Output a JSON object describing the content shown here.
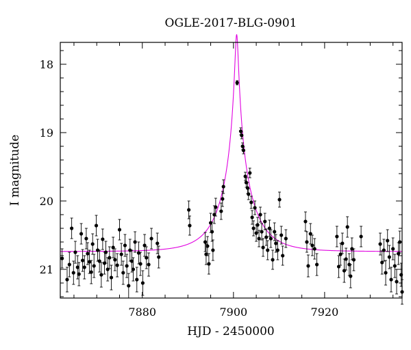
{
  "chart_data": {
    "type": "scatter",
    "title": "OGLE-2017-BLG-0901",
    "xlabel": "HJD - 2450000",
    "ylabel": "I magnitude",
    "xlim": [
      7862,
      7937
    ],
    "ylim": [
      21.42,
      17.68
    ],
    "y_inverted": true,
    "grid": false,
    "x_ticks": [
      7880,
      7900,
      7920
    ],
    "y_ticks": [
      18,
      19,
      20,
      21
    ],
    "x_tick_labels": [
      "7880",
      "7900",
      "7920"
    ],
    "y_tick_labels": [
      "18",
      "19",
      "20",
      "21"
    ],
    "model": {
      "name": "",
      "color": "#e000e0",
      "t0": 7900.7,
      "u0": 0.0536,
      "tE": 6.5,
      "baseline_mag": 20.74
    },
    "series": [
      {
        "marker_color": "#000000",
        "points": [
          [
            7862.4,
            20.84,
            0.14
          ],
          [
            7863.5,
            21.15,
            0.18
          ],
          [
            7864.0,
            20.93,
            0.18
          ],
          [
            7864.5,
            20.4,
            0.15
          ],
          [
            7864.9,
            21.05,
            0.17
          ],
          [
            7865.3,
            20.75,
            0.16
          ],
          [
            7865.8,
            20.97,
            0.17
          ],
          [
            7866.1,
            21.07,
            0.17
          ],
          [
            7866.6,
            20.48,
            0.15
          ],
          [
            7866.9,
            20.87,
            0.16
          ],
          [
            7867.3,
            20.97,
            0.17
          ],
          [
            7867.7,
            20.55,
            0.15
          ],
          [
            7868.0,
            20.77,
            0.16
          ],
          [
            7868.4,
            20.89,
            0.17
          ],
          [
            7868.8,
            21.04,
            0.17
          ],
          [
            7869.1,
            20.63,
            0.15
          ],
          [
            7869.4,
            20.95,
            0.17
          ],
          [
            7869.9,
            20.36,
            0.15
          ],
          [
            7870.2,
            20.72,
            0.16
          ],
          [
            7870.6,
            20.88,
            0.16
          ],
          [
            7871.0,
            21.08,
            0.18
          ],
          [
            7871.3,
            20.56,
            0.15
          ],
          [
            7871.7,
            20.91,
            0.16
          ],
          [
            7872.0,
            20.75,
            0.16
          ],
          [
            7872.4,
            21.0,
            0.17
          ],
          [
            7872.8,
            20.83,
            0.16
          ],
          [
            7873.2,
            21.12,
            0.18
          ],
          [
            7873.6,
            20.68,
            0.15
          ],
          [
            7874.0,
            20.86,
            0.16
          ],
          [
            7874.5,
            20.94,
            0.17
          ],
          [
            7875.0,
            20.42,
            0.15
          ],
          [
            7875.4,
            20.78,
            0.16
          ],
          [
            7875.8,
            21.05,
            0.17
          ],
          [
            7876.2,
            20.65,
            0.16
          ],
          [
            7876.6,
            20.95,
            0.17
          ],
          [
            7877.0,
            21.24,
            0.18
          ],
          [
            7877.3,
            20.72,
            0.16
          ],
          [
            7877.7,
            20.88,
            0.16
          ],
          [
            7878.0,
            21.0,
            0.17
          ],
          [
            7878.4,
            20.6,
            0.15
          ],
          [
            7878.8,
            21.15,
            0.18
          ],
          [
            7879.2,
            20.76,
            0.16
          ],
          [
            7879.6,
            20.92,
            0.17
          ],
          [
            7880.1,
            21.2,
            0.18
          ],
          [
            7880.5,
            20.65,
            0.16
          ],
          [
            7880.9,
            20.83,
            0.16
          ],
          [
            7881.4,
            20.93,
            0.17
          ],
          [
            7882.0,
            20.55,
            0.15
          ],
          [
            7883.3,
            20.62,
            0.15
          ],
          [
            7883.6,
            20.82,
            0.16
          ],
          [
            7890.2,
            20.13,
            0.13
          ],
          [
            7890.4,
            20.36,
            0.14
          ],
          [
            7893.8,
            20.6,
            0.14
          ],
          [
            7894.0,
            20.78,
            0.15
          ],
          [
            7894.3,
            20.66,
            0.14
          ],
          [
            7894.6,
            20.92,
            0.15
          ],
          [
            7895.0,
            20.32,
            0.14
          ],
          [
            7895.3,
            20.45,
            0.14
          ],
          [
            7895.5,
            20.72,
            0.15
          ],
          [
            7895.8,
            20.2,
            0.13
          ],
          [
            7896.1,
            20.09,
            0.13
          ],
          [
            7897.3,
            20.15,
            0.12
          ],
          [
            7897.6,
            19.97,
            0.11
          ],
          [
            7897.8,
            19.79,
            0.1
          ],
          [
            7900.8,
            18.27,
            0.03
          ],
          [
            7901.6,
            18.98,
            0.05
          ],
          [
            7901.8,
            19.04,
            0.05
          ],
          [
            7902.0,
            19.2,
            0.05
          ],
          [
            7902.2,
            19.26,
            0.05
          ],
          [
            7902.6,
            19.64,
            0.06
          ],
          [
            7902.8,
            19.73,
            0.07
          ],
          [
            7903.1,
            19.81,
            0.08
          ],
          [
            7903.3,
            19.9,
            0.08
          ],
          [
            7903.6,
            19.59,
            0.07
          ],
          [
            7903.9,
            20.02,
            0.09
          ],
          [
            7904.1,
            20.24,
            0.1
          ],
          [
            7904.4,
            20.4,
            0.11
          ],
          [
            7904.7,
            20.1,
            0.1
          ],
          [
            7905.0,
            20.47,
            0.12
          ],
          [
            7905.3,
            20.35,
            0.11
          ],
          [
            7905.6,
            20.55,
            0.12
          ],
          [
            7905.9,
            20.2,
            0.11
          ],
          [
            7906.2,
            20.45,
            0.12
          ],
          [
            7906.5,
            20.68,
            0.13
          ],
          [
            7906.9,
            20.3,
            0.12
          ],
          [
            7907.2,
            20.53,
            0.12
          ],
          [
            7907.5,
            20.72,
            0.14
          ],
          [
            7907.9,
            20.4,
            0.12
          ],
          [
            7908.2,
            20.55,
            0.13
          ],
          [
            7908.6,
            20.86,
            0.14
          ],
          [
            7909.0,
            20.45,
            0.13
          ],
          [
            7909.3,
            20.62,
            0.13
          ],
          [
            7909.7,
            20.72,
            0.14
          ],
          [
            7910.1,
            19.98,
            0.11
          ],
          [
            7910.5,
            20.5,
            0.13
          ],
          [
            7910.8,
            20.8,
            0.14
          ],
          [
            7911.5,
            20.55,
            0.13
          ],
          [
            7915.8,
            20.3,
            0.14
          ],
          [
            7916.1,
            20.6,
            0.15
          ],
          [
            7916.4,
            20.95,
            0.16
          ],
          [
            7916.9,
            20.48,
            0.15
          ],
          [
            7917.3,
            20.65,
            0.15
          ],
          [
            7917.8,
            20.7,
            0.15
          ],
          [
            7918.3,
            20.93,
            0.16
          ],
          [
            7922.7,
            20.52,
            0.15
          ],
          [
            7923.1,
            20.96,
            0.16
          ],
          [
            7923.5,
            20.78,
            0.16
          ],
          [
            7923.9,
            20.62,
            0.15
          ],
          [
            7924.3,
            21.02,
            0.17
          ],
          [
            7924.7,
            20.85,
            0.16
          ],
          [
            7925.0,
            20.38,
            0.15
          ],
          [
            7925.4,
            20.93,
            0.16
          ],
          [
            7925.7,
            21.1,
            0.17
          ],
          [
            7926.0,
            20.7,
            0.16
          ],
          [
            7926.4,
            20.86,
            0.16
          ],
          [
            7928.0,
            20.52,
            0.15
          ],
          [
            7932.2,
            20.63,
            0.16
          ],
          [
            7932.6,
            20.9,
            0.17
          ],
          [
            7933.0,
            20.72,
            0.16
          ],
          [
            7933.4,
            21.05,
            0.18
          ],
          [
            7933.8,
            20.58,
            0.16
          ],
          [
            7934.2,
            20.82,
            0.17
          ],
          [
            7934.6,
            21.15,
            0.18
          ],
          [
            7935.0,
            20.7,
            0.16
          ],
          [
            7935.4,
            20.95,
            0.17
          ],
          [
            7935.8,
            21.18,
            0.18
          ],
          [
            7936.2,
            20.77,
            0.16
          ],
          [
            7936.5,
            20.6,
            0.16
          ],
          [
            7936.8,
            21.08,
            0.17
          ],
          [
            7937.0,
            21.33,
            0.18
          ]
        ]
      }
    ]
  }
}
